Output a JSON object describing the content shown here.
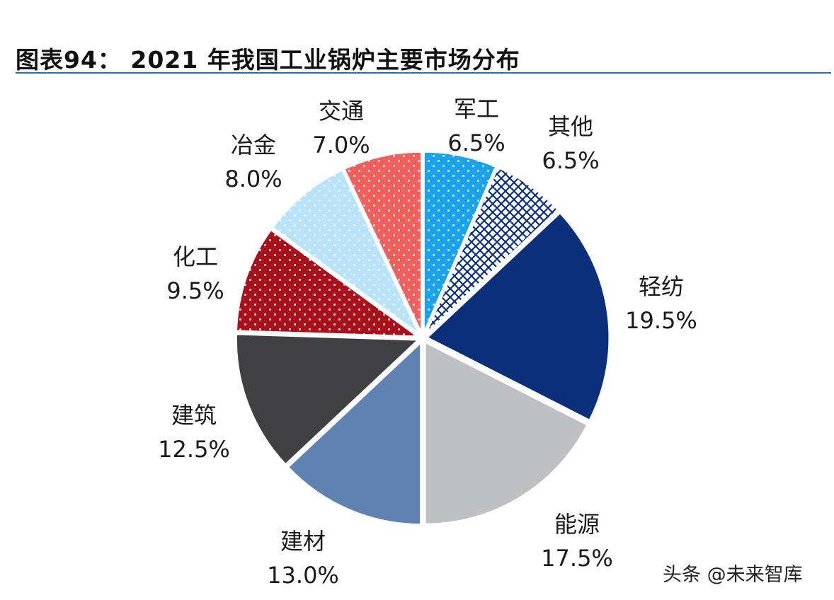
{
  "title": "图表94： 2021 年我国工业锅炉主要市场分布",
  "watermark": "头条 @未来智库",
  "chart_data": {
    "type": "pie",
    "title": "2021 年我国工业锅炉主要市场分布",
    "unit": "%",
    "slices": [
      {
        "name": "军工",
        "value": 6.5,
        "label": "6.5%",
        "color": "#1aa3ec",
        "pattern": "dots-white"
      },
      {
        "name": "其他",
        "value": 6.5,
        "label": "6.5%",
        "color": "#ffffff",
        "pattern": "crosshatch"
      },
      {
        "name": "轻纺",
        "value": 19.5,
        "label": "19.5%",
        "color": "#0b2f7a",
        "pattern": "solid"
      },
      {
        "name": "能源",
        "value": 17.5,
        "label": "17.5%",
        "color": "#bfc0c4",
        "pattern": "solid"
      },
      {
        "name": "建材",
        "value": 13.0,
        "label": "13.0%",
        "color": "#5f82b3",
        "pattern": "solid"
      },
      {
        "name": "建筑",
        "value": 12.5,
        "label": "12.5%",
        "color": "#404042",
        "pattern": "solid"
      },
      {
        "name": "化工",
        "value": 9.5,
        "label": "9.5%",
        "color": "#a8101c",
        "pattern": "dots-white"
      },
      {
        "name": "冶金",
        "value": 8.0,
        "label": "8.0%",
        "color": "#b9e3fb",
        "pattern": "dots-white"
      },
      {
        "name": "交通",
        "value": 7.0,
        "label": "7.0%",
        "color": "#f2605d",
        "pattern": "dots-white"
      }
    ]
  }
}
